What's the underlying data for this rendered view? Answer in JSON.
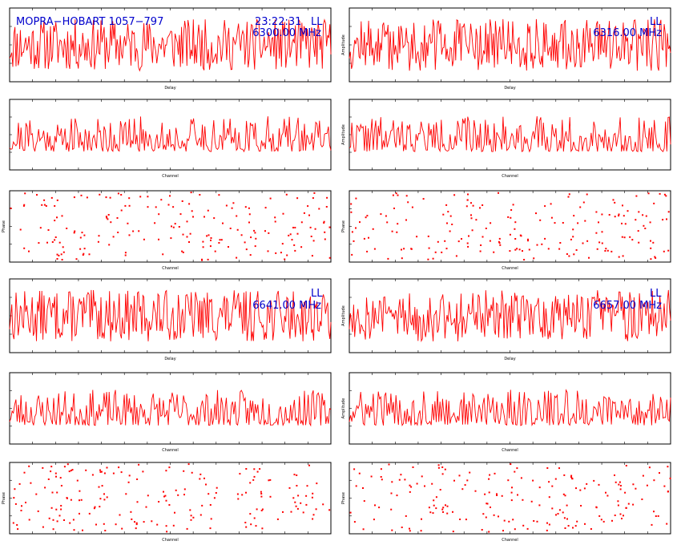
{
  "header": {
    "baseline": "MOPRA−HOBART 1057−797",
    "time": "23:22:31",
    "pol_1": "LL",
    "pol_2": "LL",
    "pol_3": "LL",
    "pol_4": "LL",
    "freq_1": "6300.00 MHz",
    "freq_2": "6316.00 MHz",
    "freq_3": "6641.00 MHz",
    "freq_4": "6657.00 MHz"
  },
  "colors": {
    "trace": "#ff0000",
    "text": "#0000cc",
    "axes": "#000000"
  },
  "chart_data": [
    {
      "id": "delay-1",
      "type": "line",
      "xlabel": "Delay",
      "ylabel": "",
      "xlim": [
        -300,
        300
      ],
      "ylim": [
        0,
        10
      ],
      "n": 300,
      "level": 5,
      "jitter": 3.5,
      "seed": 11
    },
    {
      "id": "delay-2",
      "type": "line",
      "xlabel": "Delay",
      "ylabel": "Amplitude",
      "xlim": [
        -300,
        300
      ],
      "ylim": [
        0,
        10
      ],
      "n": 300,
      "level": 5,
      "jitter": 3.5,
      "seed": 12
    },
    {
      "id": "channel-1",
      "type": "line",
      "xlabel": "Channel",
      "ylabel": "",
      "xlim": [
        0,
        256
      ],
      "ylim": [
        0,
        10
      ],
      "n": 256,
      "level": 2.6,
      "jitter": 5.0,
      "seed": 21
    },
    {
      "id": "channel-2",
      "type": "line",
      "xlabel": "Channel",
      "ylabel": "Amplitude",
      "xlim": [
        0,
        256
      ],
      "ylim": [
        0,
        10
      ],
      "n": 256,
      "level": 2.6,
      "jitter": 5.0,
      "seed": 22
    },
    {
      "id": "phase-1",
      "type": "scatter",
      "xlabel": "Channel",
      "ylabel": "Phase",
      "xlim": [
        0,
        256
      ],
      "ylim": [
        -180,
        180
      ],
      "n": 190,
      "seed": 31
    },
    {
      "id": "phase-2",
      "type": "scatter",
      "xlabel": "Channel",
      "ylabel": "Phase",
      "xlim": [
        0,
        256
      ],
      "ylim": [
        -180,
        180
      ],
      "n": 190,
      "seed": 32
    },
    {
      "id": "delay-3",
      "type": "line",
      "xlabel": "Delay",
      "ylabel": "",
      "xlim": [
        -300,
        300
      ],
      "ylim": [
        0,
        10
      ],
      "n": 300,
      "level": 5,
      "jitter": 3.5,
      "seed": 13
    },
    {
      "id": "delay-4",
      "type": "line",
      "xlabel": "Delay",
      "ylabel": "Amplitude",
      "xlim": [
        -300,
        300
      ],
      "ylim": [
        0,
        10
      ],
      "n": 300,
      "level": 5,
      "jitter": 3.5,
      "seed": 14
    },
    {
      "id": "channel-3",
      "type": "line",
      "xlabel": "Channel",
      "ylabel": "",
      "xlim": [
        0,
        256
      ],
      "ylim": [
        0,
        10
      ],
      "n": 256,
      "level": 2.6,
      "jitter": 5.0,
      "seed": 23
    },
    {
      "id": "channel-4",
      "type": "line",
      "xlabel": "Channel",
      "ylabel": "Amplitude",
      "xlim": [
        0,
        256
      ],
      "ylim": [
        0,
        10
      ],
      "n": 256,
      "level": 2.6,
      "jitter": 5.0,
      "seed": 24
    },
    {
      "id": "phase-3",
      "type": "scatter",
      "xlabel": "Channel",
      "ylabel": "Phase",
      "xlim": [
        0,
        256
      ],
      "ylim": [
        -180,
        180
      ],
      "n": 190,
      "seed": 33
    },
    {
      "id": "phase-4",
      "type": "scatter",
      "xlabel": "Channel",
      "ylabel": "Phase",
      "xlim": [
        0,
        256
      ],
      "ylim": [
        -180,
        180
      ],
      "n": 190,
      "seed": 34
    }
  ]
}
